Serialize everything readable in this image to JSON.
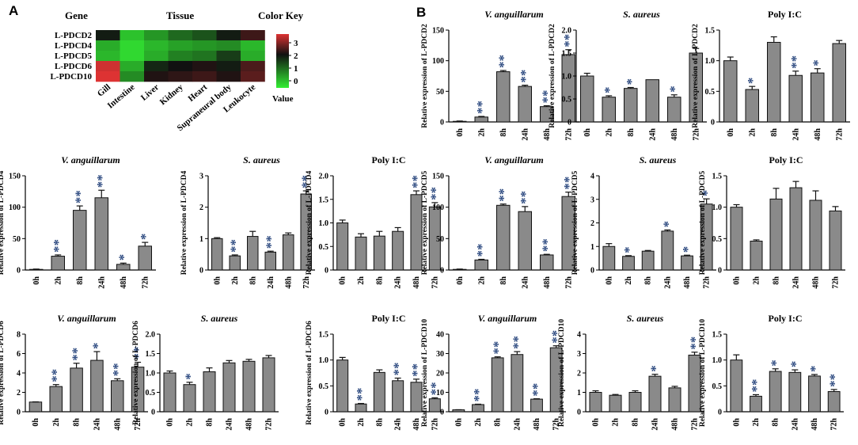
{
  "panels": {
    "a": "A",
    "b": "B"
  },
  "heatmap": {
    "header_gene": "Gene",
    "header_tissue": "Tissue",
    "header_key": "Color Key",
    "value_label": "Value",
    "genes": [
      "L-PDCD2",
      "L-PDCD4",
      "L-PDCD5",
      "L-PDCD6",
      "L-PDCD10"
    ],
    "tissues": [
      "Gill",
      "Intestine",
      "Liver",
      "Kidney",
      "Heart",
      "Supraneural body",
      "Leukocyte"
    ],
    "key_ticks": [
      "3",
      "2",
      "1",
      "0"
    ],
    "values": [
      [
        1.9,
        0.4,
        0.8,
        1.2,
        1.4,
        1.9,
        2.3
      ],
      [
        0.6,
        0.2,
        0.5,
        0.7,
        0.8,
        0.9,
        0.5
      ],
      [
        0.5,
        0.2,
        0.6,
        1.0,
        1.1,
        1.6,
        0.6
      ],
      [
        3.3,
        0.6,
        1.8,
        2.0,
        2.1,
        1.9,
        2.4
      ],
      [
        3.4,
        0.9,
        2.1,
        2.2,
        2.3,
        2.1,
        2.5
      ]
    ],
    "colors": {
      "high": "#dd3333",
      "mid": "#111111",
      "low": "#33ee33"
    }
  },
  "chart_data": [
    {
      "type": "bar",
      "title": "V. anguillarum",
      "title_italic": true,
      "ylabel": "Relative expression of L-PDCD2",
      "categories": [
        "0h",
        "2h",
        "8h",
        "24h",
        "48h",
        "72h"
      ],
      "values": [
        1,
        8,
        82,
        58,
        25,
        110
      ],
      "errors": [
        0.5,
        1,
        2,
        2,
        1.5,
        8
      ],
      "significance": [
        "",
        "**",
        "**",
        "**",
        "**",
        "**"
      ],
      "ylim": [
        0,
        150
      ],
      "yticks": [
        "0",
        "50",
        "100",
        "150"
      ]
    },
    {
      "type": "bar",
      "title": "S. aureus",
      "title_italic": true,
      "ylabel": "Relative expression of L-PDCD2",
      "categories": [
        "0h",
        "2h",
        "8h",
        "24h",
        "48h",
        "72h"
      ],
      "values": [
        1.0,
        0.54,
        0.73,
        0.92,
        0.54,
        1.5
      ],
      "errors": [
        0.06,
        0.03,
        0.02,
        0,
        0.05,
        0.1
      ],
      "significance": [
        "",
        "*",
        "*",
        "",
        "*",
        ""
      ],
      "ylim": [
        0,
        2.0
      ],
      "yticks": [
        "0",
        "0.5",
        "1.0",
        "1.5",
        "2.0"
      ]
    },
    {
      "type": "bar",
      "title": "Poly I:C",
      "title_italic": false,
      "ylabel": "Relative expression of L-PDCD2",
      "categories": [
        "0h",
        "2h",
        "8h",
        "24h",
        "48h",
        "72h"
      ],
      "values": [
        1.0,
        0.53,
        1.3,
        0.76,
        0.8,
        1.28
      ],
      "errors": [
        0.06,
        0.05,
        0.09,
        0.07,
        0.07,
        0.05
      ],
      "significance": [
        "",
        "*",
        "",
        "**",
        "*",
        ""
      ],
      "ylim": [
        0,
        1.5
      ],
      "yticks": [
        "0",
        "0.5",
        "1.0",
        "1.5"
      ]
    },
    {
      "type": "bar",
      "title": "V. anguillarum",
      "title_italic": true,
      "ylabel": "Relative expression of L-PDCD4",
      "categories": [
        "0h",
        "2h",
        "8h",
        "24h",
        "48h",
        "72h"
      ],
      "values": [
        1,
        22,
        95,
        115,
        9,
        38
      ],
      "errors": [
        0.5,
        2,
        7,
        12,
        2,
        6
      ],
      "significance": [
        "",
        "**",
        "**",
        "**",
        "*",
        "*"
      ],
      "ylim": [
        0,
        150
      ],
      "yticks": [
        "0",
        "50",
        "100",
        "150"
      ]
    },
    {
      "type": "bar",
      "title": "S. aureus",
      "title_italic": true,
      "ylabel": "Relative expression of L-PDCD4",
      "categories": [
        "0h",
        "2h",
        "8h",
        "24h",
        "48h",
        "72h"
      ],
      "values": [
        1.0,
        0.45,
        1.07,
        0.57,
        1.12,
        2.42
      ],
      "errors": [
        0.03,
        0.03,
        0.16,
        0.03,
        0.06,
        0.1
      ],
      "significance": [
        "",
        "**",
        "",
        "**",
        "",
        "**"
      ],
      "ylim": [
        0,
        3
      ],
      "yticks": [
        "0",
        "1",
        "2",
        "3"
      ]
    },
    {
      "type": "bar",
      "title": "Poly I:C",
      "title_italic": false,
      "ylabel": "Relative expression of L-PDCD4",
      "categories": [
        "0h",
        "2h",
        "8h",
        "24h",
        "48h",
        "72h"
      ],
      "values": [
        1.0,
        0.7,
        0.72,
        0.82,
        1.6,
        1.34
      ],
      "errors": [
        0.06,
        0.07,
        0.1,
        0.08,
        0.08,
        0.09
      ],
      "significance": [
        "",
        "",
        "",
        "",
        "**",
        "**"
      ],
      "ylim": [
        0,
        2.0
      ],
      "yticks": [
        "0",
        "0.5",
        "1.0",
        "1.5",
        "2.0"
      ]
    },
    {
      "type": "bar",
      "title": "V. anguillarum",
      "title_italic": true,
      "ylabel": "Relative expression of L-PDCD5",
      "categories": [
        "0h",
        "2h",
        "8h",
        "24h",
        "48h",
        "72h"
      ],
      "values": [
        1,
        16,
        103,
        93,
        24,
        117
      ],
      "errors": [
        0.5,
        1,
        2,
        8,
        1,
        7
      ],
      "significance": [
        "",
        "**",
        "**",
        "**",
        "**",
        "**"
      ],
      "ylim": [
        0,
        150
      ],
      "yticks": [
        "0",
        "50",
        "100",
        "150"
      ]
    },
    {
      "type": "bar",
      "title": "S. aureus",
      "title_italic": true,
      "ylabel": "Relative expression of L-PDCD5",
      "categories": [
        "0h",
        "2h",
        "8h",
        "24h",
        "48h",
        "72h"
      ],
      "values": [
        1.0,
        0.58,
        0.8,
        1.65,
        0.6,
        2.8
      ],
      "errors": [
        0.12,
        0.03,
        0.03,
        0.05,
        0.03,
        0.22
      ],
      "significance": [
        "",
        "*",
        "",
        "*",
        "*",
        "*"
      ],
      "ylim": [
        0,
        4
      ],
      "yticks": [
        "0",
        "1",
        "2",
        "3",
        "4"
      ]
    },
    {
      "type": "bar",
      "title": "Poly I:C",
      "title_italic": false,
      "ylabel": "Relative expression of L-PDCD5",
      "categories": [
        "0h",
        "2h",
        "8h",
        "24h",
        "48h",
        "72h"
      ],
      "values": [
        1.0,
        0.46,
        1.13,
        1.31,
        1.11,
        0.94
      ],
      "errors": [
        0.04,
        0.02,
        0.17,
        0.1,
        0.15,
        0.07
      ],
      "significance": [
        "",
        "",
        "",
        "",
        "",
        ""
      ],
      "ylim": [
        0,
        1.5
      ],
      "yticks": [
        "0",
        "0.5",
        "1.0",
        "1.5"
      ]
    },
    {
      "type": "bar",
      "title": "V. anguillarum",
      "title_italic": true,
      "ylabel": "Relative expression of L-PDCD6",
      "categories": [
        "0h",
        "2h",
        "8h",
        "24h",
        "48h",
        "72h"
      ],
      "values": [
        1.0,
        2.6,
        4.5,
        5.3,
        3.2,
        4.6
      ],
      "errors": [
        0.02,
        0.2,
        0.5,
        0.9,
        0.2,
        0.5
      ],
      "significance": [
        "",
        "**",
        "**",
        "*",
        "**",
        "**"
      ],
      "ylim": [
        0,
        8
      ],
      "yticks": [
        "0",
        "2",
        "4",
        "6",
        "8"
      ]
    },
    {
      "type": "bar",
      "title": "S. aureus",
      "title_italic": true,
      "ylabel": "Relative expression of L-PDCD6",
      "categories": [
        "0h",
        "2h",
        "8h",
        "24h",
        "48h",
        "72h"
      ],
      "values": [
        1.0,
        0.7,
        1.03,
        1.26,
        1.3,
        1.39
      ],
      "errors": [
        0.05,
        0.06,
        0.1,
        0.06,
        0.05,
        0.06
      ],
      "significance": [
        "",
        "*",
        "",
        "",
        "",
        ""
      ],
      "ylim": [
        0,
        2.0
      ],
      "yticks": [
        "0",
        "0.5",
        "1.0",
        "1.5",
        "2.0"
      ]
    },
    {
      "type": "bar",
      "title": "Poly I:C",
      "title_italic": false,
      "ylabel": "Relative expression of L-PDCD6",
      "categories": [
        "0h",
        "2h",
        "8h",
        "24h",
        "48h",
        "72h"
      ],
      "values": [
        1.0,
        0.15,
        0.76,
        0.6,
        0.57,
        0.25
      ],
      "errors": [
        0.05,
        0.01,
        0.05,
        0.05,
        0.06,
        0.02
      ],
      "significance": [
        "",
        "**",
        "",
        "**",
        "**",
        "**"
      ],
      "ylim": [
        0,
        1.5
      ],
      "yticks": [
        "0",
        "0.5",
        "1.0",
        "1.5"
      ]
    },
    {
      "type": "bar",
      "title": "V. anguillarum",
      "title_italic": true,
      "ylabel": "Relative expression of L-PDCD10",
      "categories": [
        "0h",
        "2h",
        "8h",
        "24h",
        "48h",
        "72h"
      ],
      "values": [
        1,
        3.7,
        27.8,
        29.5,
        6.5,
        33
      ],
      "errors": [
        0.05,
        0.2,
        0.5,
        1.5,
        0.2,
        1
      ],
      "significance": [
        "",
        "**",
        "**",
        "**",
        "**",
        "**"
      ],
      "ylim": [
        0,
        40
      ],
      "yticks": [
        "0",
        "10",
        "20",
        "30",
        "40"
      ]
    },
    {
      "type": "bar",
      "title": "S. aureus",
      "title_italic": true,
      "ylabel": "Relative expression of L-PDCD10",
      "categories": [
        "0h",
        "2h",
        "8h",
        "24h",
        "48h",
        "72h"
      ],
      "values": [
        1.0,
        0.85,
        1.0,
        1.83,
        1.23,
        2.92
      ],
      "errors": [
        0.08,
        0.04,
        0.08,
        0.1,
        0.08,
        0.15
      ],
      "significance": [
        "",
        "",
        "",
        "*",
        "",
        "**"
      ],
      "ylim": [
        0,
        4
      ],
      "yticks": [
        "0",
        "1",
        "2",
        "3",
        "4"
      ]
    },
    {
      "type": "bar",
      "title": "Poly I:C",
      "title_italic": false,
      "ylabel": "Relative expression of L-PDCD10",
      "categories": [
        "0h",
        "2h",
        "8h",
        "24h",
        "48h",
        "72h"
      ],
      "values": [
        1.0,
        0.3,
        0.78,
        0.76,
        0.69,
        0.39
      ],
      "errors": [
        0.1,
        0.03,
        0.05,
        0.05,
        0.03,
        0.04
      ],
      "significance": [
        "",
        "**",
        "*",
        "*",
        "*",
        "**"
      ],
      "ylim": [
        0,
        1.5
      ],
      "yticks": [
        "0",
        "0.5",
        "1.0",
        "1.5"
      ]
    }
  ]
}
